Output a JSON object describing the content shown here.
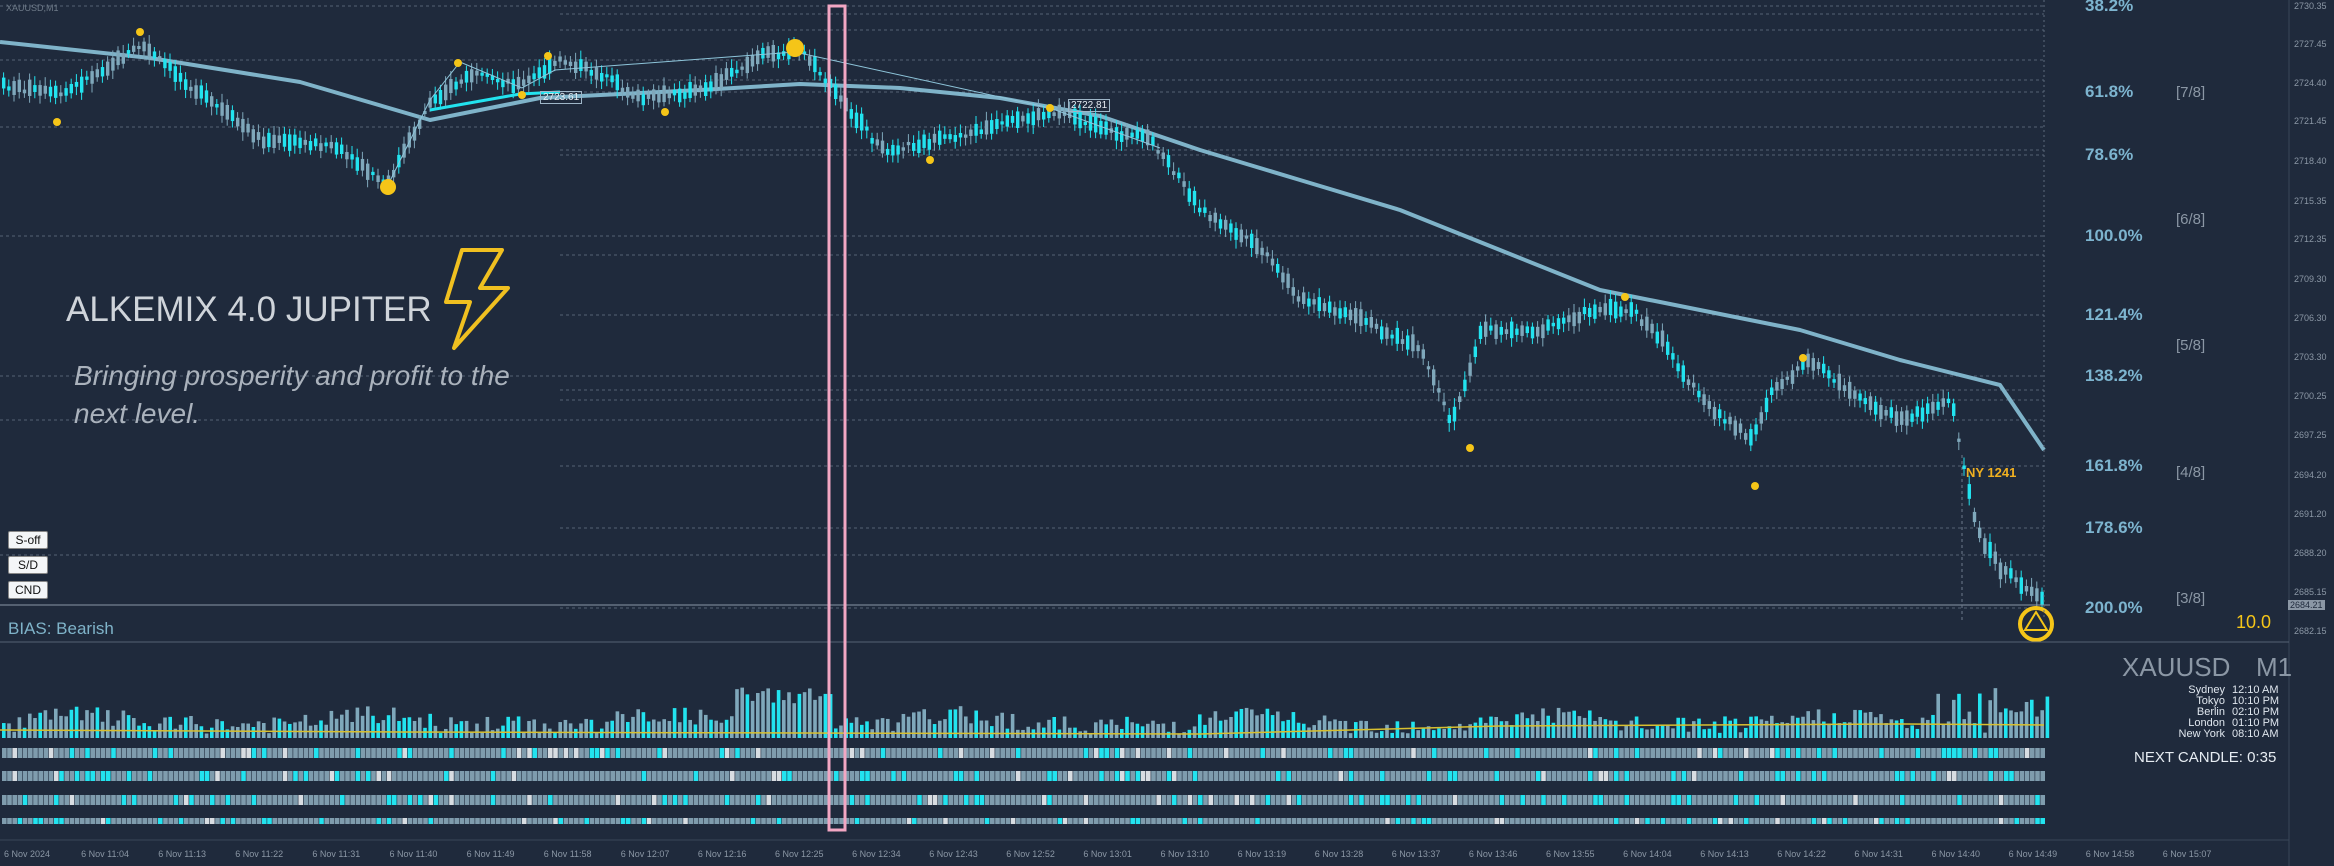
{
  "window": {
    "symbol_tag": "XAUUSD,M1"
  },
  "banner": {
    "title": "ALKEMIX 4.0 JUPITER",
    "tagline_line1": "Bringing prosperity and profit to the",
    "tagline_line2": "next level.",
    "icon": "lightning-bolt-icon"
  },
  "buttons": {
    "s_off": "S-off",
    "sd": "S/D",
    "cnd": "CND"
  },
  "bias": {
    "label": "BIAS: Bearish"
  },
  "ny_label": "NY 1241",
  "counter": "10.0",
  "instrument": {
    "symbol": "XAUUSD",
    "timeframe": "M1"
  },
  "sessions": [
    {
      "city": "Sydney",
      "time": "12:10 AM"
    },
    {
      "city": "Tokyo",
      "time": "10:10 PM"
    },
    {
      "city": "Berlin",
      "time": "02:10 PM"
    },
    {
      "city": "London",
      "time": "01:10 PM"
    },
    {
      "city": "New York",
      "time": "08:10 AM"
    }
  ],
  "next_candle": "NEXT CANDLE: 0:35",
  "fib_levels": [
    "38.2%",
    "61.8%",
    "78.6%",
    "100.0%",
    "121.4%",
    "138.2%",
    "161.8%",
    "178.6%",
    "200.0%"
  ],
  "murrey_levels": [
    "[7/8]",
    "[6/8]",
    "[5/8]",
    "[4/8]",
    "[3/8]"
  ],
  "price_scale": [
    "2730.35",
    "2727.45",
    "2724.40",
    "2721.45",
    "2718.40",
    "2715.35",
    "2712.35",
    "2709.30",
    "2706.30",
    "2703.30",
    "2700.25",
    "2697.25",
    "2694.20",
    "2691.20",
    "2688.20",
    "2685.15",
    "2682.15"
  ],
  "price_badge": "2684.21",
  "fib_price_labels": [
    "2723.61",
    "2722.81"
  ],
  "time_axis": [
    "6 Nov 2024",
    "6 Nov 11:04",
    "6 Nov 11:13",
    "6 Nov 11:22",
    "6 Nov 11:31",
    "6 Nov 11:40",
    "6 Nov 11:49",
    "6 Nov 11:58",
    "6 Nov 12:07",
    "6 Nov 12:16",
    "6 Nov 12:25",
    "6 Nov 12:34",
    "6 Nov 12:43",
    "6 Nov 12:52",
    "6 Nov 13:01",
    "6 Nov 13:10",
    "6 Nov 13:19",
    "6 Nov 13:28",
    "6 Nov 13:37",
    "6 Nov 13:46",
    "6 Nov 13:55",
    "6 Nov 14:04",
    "6 Nov 14:13",
    "6 Nov 14:22",
    "6 Nov 14:31",
    "6 Nov 14:40",
    "6 Nov 14:49",
    "6 Nov 14:58",
    "6 Nov 15:07"
  ],
  "colors": {
    "background": "#1f2a3c",
    "bull_candle": "#22e3ef",
    "bear_candle": "#7fa8bb",
    "moving_average": "#7fb3c9",
    "swing_dot": "#f5c518",
    "highlight_rect": "#f2a7c3",
    "bias_text": "#7fb3c9"
  }
}
